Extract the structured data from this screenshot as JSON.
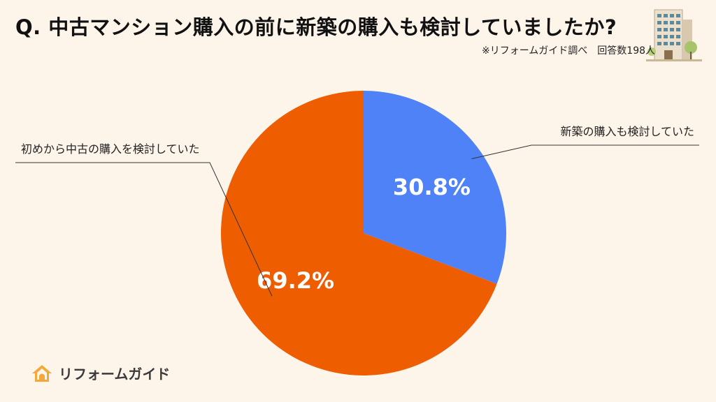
{
  "header": {
    "title": "Q.  中古マンション購入の前に新築の購入も検討していましたか?",
    "source": "※リフォームガイド調べ　回答数198人"
  },
  "brand": {
    "logo_text": "リフォームガイド",
    "logo_icon": "house-logo-icon",
    "illustration_icon": "apartment-building-icon"
  },
  "chart_data": {
    "type": "pie",
    "title": "Q.  中古マンション購入の前に新築の購入も検討していましたか?",
    "slices": [
      {
        "label": "新築の購入も検討していた",
        "value": 30.8,
        "value_label": "30.8%",
        "color": "#4f81f7"
      },
      {
        "label": "初めから中古の購入を検討していた",
        "value": 69.2,
        "value_label": "69.2%",
        "color": "#ee5d00"
      }
    ],
    "start_angle": "12 o'clock",
    "direction": "clockwise",
    "legend": "none"
  },
  "colors": {
    "background": "#fdf4ea",
    "label_line": "#333333",
    "logo_accent": "#f2a93b"
  }
}
